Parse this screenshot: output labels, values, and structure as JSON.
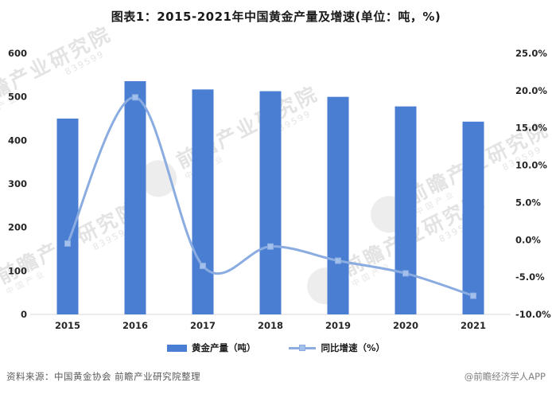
{
  "title": "图表1：2015-2021年中国黄金产量及增速(单位：吨，%)",
  "chart_data": {
    "type": "bar+line",
    "title": "图表1：2015-2021年中国黄金产量及增速(单位：吨，%)",
    "categories": [
      "2015",
      "2016",
      "2017",
      "2018",
      "2019",
      "2020",
      "2021"
    ],
    "series": [
      {
        "name": "黄金产量（吨）",
        "type": "bar",
        "axis": "left",
        "color": "#4a7ed2",
        "values": [
          450,
          536,
          517,
          513,
          500,
          478,
          443
        ]
      },
      {
        "name": "同比增速（%）",
        "type": "line",
        "axis": "right",
        "color": "#8aace1",
        "marker_color": "#a3c0ec",
        "values": [
          -0.5,
          19.1,
          -3.5,
          -0.9,
          -2.8,
          -4.5,
          -7.5
        ]
      }
    ],
    "left_axis": {
      "min": 0,
      "max": 600,
      "step": 100,
      "ticks": [
        "0",
        "100",
        "200",
        "300",
        "400",
        "500",
        "600"
      ]
    },
    "right_axis": {
      "min": -10,
      "max": 25,
      "step": 5,
      "ticks": [
        "-10.0%",
        "-5.0%",
        "0.0%",
        "5.0%",
        "10.0%",
        "15.0%",
        "20.0%",
        "25.0%"
      ]
    },
    "grid": false,
    "legend_position": "bottom",
    "axis_text_color": "#262626",
    "axis_line_color": "#d9d9d9"
  },
  "footer": {
    "source": "资料来源：中国黄金协会 前瞻产业研究院整理",
    "credit": "@前瞻经济学人APP"
  },
  "watermark": {
    "text": "前瞻产业研究院",
    "subtext": "中国产业",
    "digits": "839599"
  }
}
